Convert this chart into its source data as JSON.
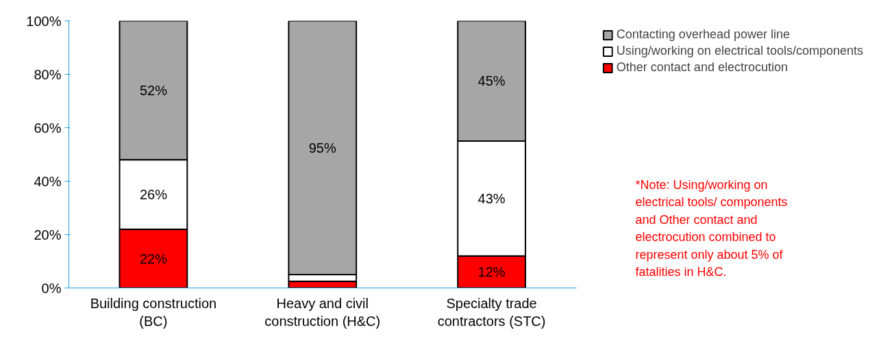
{
  "chart_data": {
    "type": "bar",
    "stacked": true,
    "categories": [
      "Building construction (BC)",
      "Heavy and civil construction (H&C)",
      "Specialty trade contractors (STC)"
    ],
    "series": [
      {
        "name": "Other contact and electrocution",
        "color": "#ff0000",
        "values": [
          22,
          2.5,
          12
        ],
        "value_labels": [
          "22%",
          null,
          "12%"
        ]
      },
      {
        "name": "Using/working on electrical tools/components",
        "color": "#ffffff",
        "values": [
          26,
          2.5,
          43
        ],
        "value_labels": [
          "26%",
          null,
          "43%"
        ]
      },
      {
        "name": "Contacting overhead power line",
        "color": "#a6a6a6",
        "values": [
          52,
          95,
          45
        ],
        "value_labels": [
          "52%",
          "95%",
          "45%"
        ]
      }
    ],
    "ylim": [
      0,
      100
    ],
    "yticks": [
      {
        "value": 0,
        "label": "0%"
      },
      {
        "value": 20,
        "label": "20%"
      },
      {
        "value": 40,
        "label": "40%"
      },
      {
        "value": 60,
        "label": "60%"
      },
      {
        "value": 80,
        "label": "80%"
      },
      {
        "value": 100,
        "label": "100%"
      }
    ],
    "grid": false,
    "legend": "right",
    "annotations": [
      "*Note: Using/working on electrical tools/ components and Other contact and electrocution combined to represent only about 5% of fatalities in H&C."
    ]
  }
}
